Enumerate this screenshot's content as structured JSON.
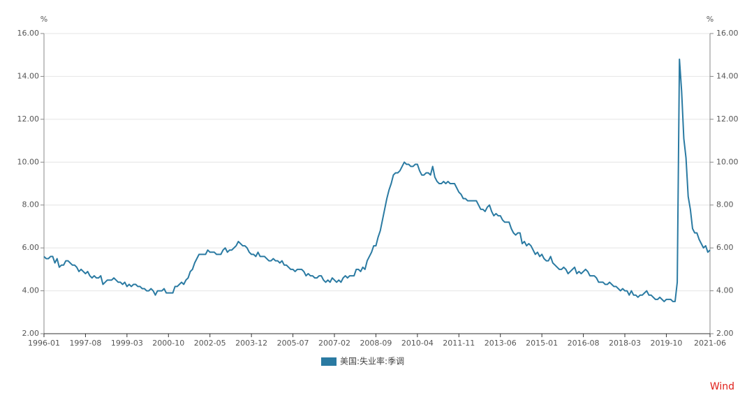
{
  "chart_data": {
    "type": "line",
    "y_unit": "%",
    "y2_unit": "%",
    "categories": [
      "1996-01",
      null,
      null,
      null,
      null,
      null,
      null,
      null,
      null,
      null,
      null,
      null,
      null,
      null,
      null,
      null,
      null,
      null,
      null,
      "1997-08",
      null,
      null,
      null,
      null,
      null,
      null,
      null,
      null,
      null,
      null,
      null,
      null,
      null,
      null,
      null,
      null,
      null,
      null,
      "1999-03",
      null,
      null,
      null,
      null,
      null,
      null,
      null,
      null,
      null,
      null,
      null,
      null,
      null,
      null,
      null,
      null,
      null,
      null,
      "2000-10",
      null,
      null,
      null,
      null,
      null,
      null,
      null,
      null,
      null,
      null,
      null,
      null,
      null,
      null,
      null,
      null,
      null,
      null,
      "2002-05",
      null,
      null,
      null,
      null,
      null,
      null,
      null,
      null,
      null,
      null,
      null,
      null,
      null,
      null,
      null,
      null,
      null,
      null,
      "2003-12",
      null,
      null,
      null,
      null,
      null,
      null,
      null,
      null,
      null,
      null,
      null,
      null,
      null,
      null,
      null,
      null,
      null,
      null,
      "2005-07",
      null,
      null,
      null,
      null,
      null,
      null,
      null,
      null,
      null,
      null,
      null,
      null,
      null,
      null,
      null,
      null,
      null,
      null,
      "2007-02",
      null,
      null,
      null,
      null,
      null,
      null,
      null,
      null,
      null,
      null,
      null,
      null,
      null,
      null,
      null,
      null,
      null,
      null,
      "2008-09",
      null,
      null,
      null,
      null,
      null,
      null,
      null,
      null,
      null,
      null,
      null,
      null,
      null,
      null,
      null,
      null,
      null,
      null,
      "2010-04",
      null,
      null,
      null,
      null,
      null,
      null,
      null,
      null,
      null,
      null,
      null,
      null,
      null,
      null,
      null,
      null,
      null,
      null,
      "2011-11",
      null,
      null,
      null,
      null,
      null,
      null,
      null,
      null,
      null,
      null,
      null,
      null,
      null,
      null,
      null,
      null,
      null,
      null,
      "2013-06",
      null,
      null,
      null,
      null,
      null,
      null,
      null,
      null,
      null,
      null,
      null,
      null,
      null,
      null,
      null,
      null,
      null,
      null,
      "2015-01",
      null,
      null,
      null,
      null,
      null,
      null,
      null,
      null,
      null,
      null,
      null,
      null,
      null,
      null,
      null,
      null,
      null,
      null,
      "2016-08",
      null,
      null,
      null,
      null,
      null,
      null,
      null,
      null,
      null,
      null,
      null,
      null,
      null,
      null,
      null,
      null,
      null,
      null,
      "2018-03",
      null,
      null,
      null,
      null,
      null,
      null,
      null,
      null,
      null,
      null,
      null,
      null,
      null,
      null,
      null,
      null,
      null,
      null,
      "2019-10",
      null,
      null,
      null,
      null,
      null,
      null,
      null,
      null,
      null,
      null,
      null,
      null,
      null,
      null,
      null,
      null,
      null,
      null,
      null,
      "2021-06"
    ],
    "series": [
      {
        "name": "美国:失业率:季调",
        "color": "#2a7aa2",
        "values": [
          5.6,
          5.5,
          5.5,
          5.6,
          5.6,
          5.3,
          5.5,
          5.1,
          5.2,
          5.2,
          5.4,
          5.4,
          5.3,
          5.2,
          5.2,
          5.1,
          4.9,
          5.0,
          4.9,
          4.8,
          4.9,
          4.7,
          4.6,
          4.7,
          4.6,
          4.6,
          4.7,
          4.3,
          4.4,
          4.5,
          4.5,
          4.5,
          4.6,
          4.5,
          4.4,
          4.4,
          4.3,
          4.4,
          4.2,
          4.3,
          4.2,
          4.3,
          4.3,
          4.2,
          4.2,
          4.1,
          4.1,
          4.0,
          4.0,
          4.1,
          4.0,
          3.8,
          4.0,
          4.0,
          4.0,
          4.1,
          3.9,
          3.9,
          3.9,
          3.9,
          4.2,
          4.2,
          4.3,
          4.4,
          4.3,
          4.5,
          4.6,
          4.9,
          5.0,
          5.3,
          5.5,
          5.7,
          5.7,
          5.7,
          5.7,
          5.9,
          5.8,
          5.8,
          5.8,
          5.7,
          5.7,
          5.7,
          5.9,
          6.0,
          5.8,
          5.9,
          5.9,
          6.0,
          6.1,
          6.3,
          6.2,
          6.1,
          6.1,
          6.0,
          5.8,
          5.7,
          5.7,
          5.6,
          5.8,
          5.6,
          5.6,
          5.6,
          5.5,
          5.4,
          5.4,
          5.5,
          5.4,
          5.4,
          5.3,
          5.4,
          5.2,
          5.2,
          5.1,
          5.0,
          5.0,
          4.9,
          5.0,
          5.0,
          5.0,
          4.9,
          4.7,
          4.8,
          4.7,
          4.7,
          4.6,
          4.6,
          4.7,
          4.7,
          4.5,
          4.4,
          4.5,
          4.4,
          4.6,
          4.5,
          4.4,
          4.5,
          4.4,
          4.6,
          4.7,
          4.6,
          4.7,
          4.7,
          4.7,
          5.0,
          5.0,
          4.9,
          5.1,
          5.0,
          5.4,
          5.6,
          5.8,
          6.1,
          6.1,
          6.5,
          6.8,
          7.3,
          7.8,
          8.3,
          8.7,
          9.0,
          9.4,
          9.5,
          9.5,
          9.6,
          9.8,
          10.0,
          9.9,
          9.9,
          9.8,
          9.8,
          9.9,
          9.9,
          9.6,
          9.4,
          9.4,
          9.5,
          9.5,
          9.4,
          9.8,
          9.3,
          9.1,
          9.0,
          9.0,
          9.1,
          9.0,
          9.1,
          9.0,
          9.0,
          9.0,
          8.8,
          8.6,
          8.5,
          8.3,
          8.3,
          8.2,
          8.2,
          8.2,
          8.2,
          8.2,
          8.0,
          7.8,
          7.8,
          7.7,
          7.9,
          8.0,
          7.7,
          7.5,
          7.6,
          7.5,
          7.5,
          7.3,
          7.2,
          7.2,
          7.2,
          6.9,
          6.7,
          6.6,
          6.7,
          6.7,
          6.2,
          6.3,
          6.1,
          6.2,
          6.1,
          5.9,
          5.7,
          5.8,
          5.6,
          5.7,
          5.5,
          5.4,
          5.4,
          5.6,
          5.3,
          5.2,
          5.1,
          5.0,
          5.0,
          5.1,
          5.0,
          4.8,
          4.9,
          5.0,
          5.1,
          4.8,
          4.9,
          4.8,
          4.9,
          5.0,
          4.9,
          4.7,
          4.7,
          4.7,
          4.6,
          4.4,
          4.4,
          4.4,
          4.3,
          4.3,
          4.4,
          4.3,
          4.2,
          4.2,
          4.1,
          4.0,
          4.1,
          4.0,
          4.0,
          3.8,
          4.0,
          3.8,
          3.8,
          3.7,
          3.8,
          3.8,
          3.9,
          4.0,
          3.8,
          3.8,
          3.7,
          3.6,
          3.6,
          3.7,
          3.6,
          3.5,
          3.6,
          3.6,
          3.6,
          3.5,
          3.5,
          4.4,
          14.8,
          13.3,
          11.1,
          10.2,
          8.4,
          7.8,
          6.9,
          6.7,
          6.7,
          6.4,
          6.2,
          6.0,
          6.1,
          5.8,
          5.9
        ]
      }
    ],
    "ylim": [
      2,
      16
    ],
    "yticks": [
      {
        "value": 2,
        "label": "2.00"
      },
      {
        "value": 4,
        "label": "4.00"
      },
      {
        "value": 6,
        "label": "6.00"
      },
      {
        "value": 8,
        "label": "8.00"
      },
      {
        "value": 10,
        "label": "10.00"
      },
      {
        "value": 12,
        "label": "12.00"
      },
      {
        "value": 14,
        "label": "14.00"
      },
      {
        "value": 16,
        "label": "16.00"
      }
    ],
    "y2lim": [
      2,
      16
    ],
    "y2ticks": [
      {
        "value": 2,
        "label": "2.00"
      },
      {
        "value": 4,
        "label": "4.00"
      },
      {
        "value": 6,
        "label": "6.00"
      },
      {
        "value": 8,
        "label": "8.00"
      },
      {
        "value": 10,
        "label": "10.00"
      },
      {
        "value": 12,
        "label": "12.00"
      },
      {
        "value": 14,
        "label": "14.00"
      },
      {
        "value": 16,
        "label": "16.00"
      }
    ],
    "grid": true,
    "legend": "bottom",
    "source": "Wind"
  }
}
